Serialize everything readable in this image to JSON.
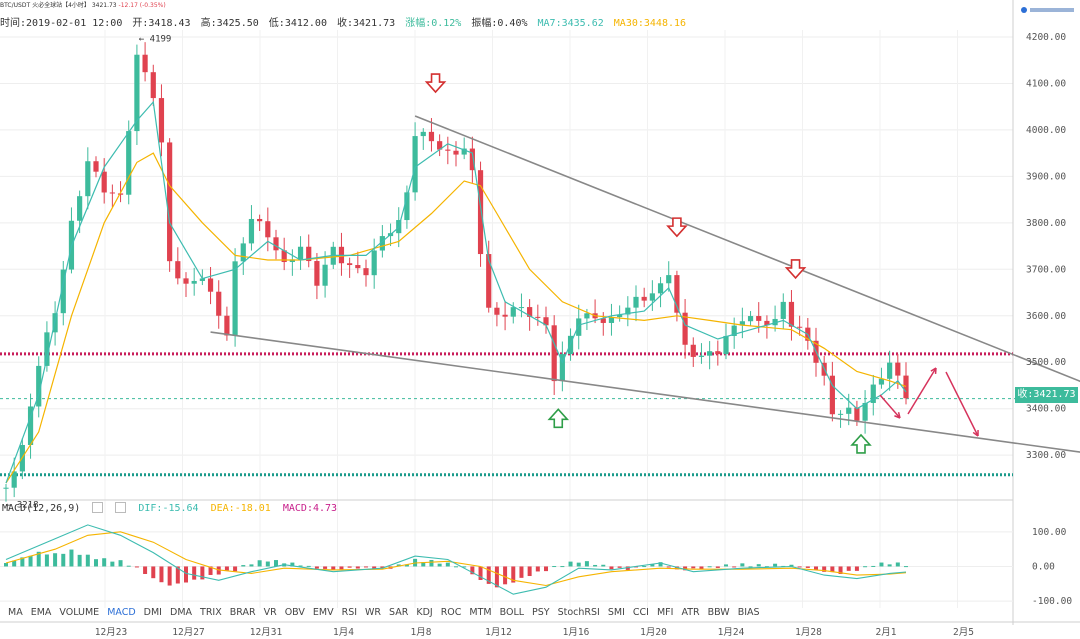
{
  "header": {
    "pair": "BTC/USDT",
    "exchange": "火必全球站【4小时】",
    "last": "3421.73",
    "change": "-12.17 (-0.35%)"
  },
  "topinfo": {
    "time": "时间:2019-02-01 12:00",
    "open": "开:3418.43",
    "high": "高:3425.50",
    "low": "低:3412.00",
    "close": "收:3421.73",
    "change": "涨幅:0.12%",
    "amplitude": "振幅:0.40%",
    "ma7": "MA7:3435.62",
    "ma30": "MA30:3448.16"
  },
  "macd_info": {
    "name": "MACD(12,26,9)",
    "dif": "DIF:-15.64",
    "dea": "DEA:-18.01",
    "macd": "MACD:4.73"
  },
  "indicators": [
    "MA",
    "EMA",
    "VOLUME",
    "MACD",
    "DMI",
    "DMA",
    "TRIX",
    "BRAR",
    "VR",
    "OBV",
    "EMV",
    "RSI",
    "WR",
    "SAR",
    "KDJ",
    "ROC",
    "MTM",
    "BOLL",
    "PSY",
    "StochRSI",
    "SMI",
    "CCI",
    "MFI",
    "ATR",
    "BBW",
    "BIAS"
  ],
  "active_indicator": "MACD",
  "colors": {
    "up": "#3dbb9c",
    "down": "#e0424f",
    "ma7": "#3dbcb0",
    "ma30": "#f5b400",
    "trendline": "#888888",
    "support_line": "#c81e5a",
    "lower_support": "#1a9a8a",
    "arrow_red": "#d32f2f",
    "arrow_green": "#2e9e48",
    "projection": "#d6335c"
  },
  "chart_data": [
    {
      "type": "candlestick",
      "title": "BTC/USDT 4H",
      "x_ticks": [
        "12月23",
        "12月27",
        "12月31",
        "1月4",
        "1月8",
        "1月12",
        "1月16",
        "1月20",
        "1月24",
        "1月28",
        "2月1",
        "2月5"
      ],
      "y_ticks": [
        3300,
        3400,
        3500,
        3600,
        3700,
        3800,
        3900,
        4000,
        4100,
        4200
      ],
      "ylim": [
        3210,
        4215
      ],
      "current_price": 3421.73,
      "high_mark": 4199,
      "low_mark": 3218,
      "horizontal_levels": [
        {
          "name": "resistance-support",
          "value": 3518
        },
        {
          "name": "lower-support",
          "value": 3258
        }
      ],
      "trendlines": [
        {
          "name": "upper-trendline",
          "from": {
            "x": 50,
            "y": 4030
          },
          "to": {
            "x": 134,
            "y": 3440
          }
        },
        {
          "name": "lower-trendline",
          "from": {
            "x": 25,
            "y": 3565
          },
          "to": {
            "x": 134,
            "y": 3300
          }
        }
      ],
      "price_path": [
        [
          0,
          3230
        ],
        [
          2,
          3300
        ],
        [
          4,
          3480
        ],
        [
          6,
          3600
        ],
        [
          8,
          3800
        ],
        [
          10,
          3950
        ],
        [
          12,
          3890
        ],
        [
          14,
          3860
        ],
        [
          16,
          4150
        ],
        [
          18,
          4060
        ],
        [
          19,
          3950
        ],
        [
          20,
          3700
        ],
        [
          22,
          3660
        ],
        [
          24,
          3700
        ],
        [
          26,
          3620
        ],
        [
          27,
          3580
        ],
        [
          28,
          3720
        ],
        [
          30,
          3810
        ],
        [
          32,
          3760
        ],
        [
          34,
          3690
        ],
        [
          36,
          3740
        ],
        [
          38,
          3680
        ],
        [
          40,
          3760
        ],
        [
          42,
          3720
        ],
        [
          44,
          3700
        ],
        [
          46,
          3760
        ],
        [
          48,
          3780
        ],
        [
          49,
          3850
        ],
        [
          50,
          3980
        ],
        [
          52,
          3980
        ],
        [
          54,
          3960
        ],
        [
          56,
          3980
        ],
        [
          57,
          3920
        ],
        [
          58,
          3750
        ],
        [
          59,
          3620
        ],
        [
          60,
          3590
        ],
        [
          62,
          3600
        ],
        [
          64,
          3590
        ],
        [
          66,
          3570
        ],
        [
          67,
          3470
        ],
        [
          68,
          3520
        ],
        [
          70,
          3620
        ],
        [
          72,
          3610
        ],
        [
          74,
          3590
        ],
        [
          76,
          3610
        ],
        [
          78,
          3620
        ],
        [
          80,
          3650
        ],
        [
          81,
          3690
        ],
        [
          82,
          3610
        ],
        [
          83,
          3540
        ],
        [
          85,
          3530
        ],
        [
          87,
          3540
        ],
        [
          88,
          3560
        ],
        [
          90,
          3590
        ],
        [
          92,
          3570
        ],
        [
          94,
          3570
        ],
        [
          95,
          3620
        ],
        [
          96,
          3580
        ],
        [
          98,
          3560
        ],
        [
          100,
          3480
        ],
        [
          101,
          3410
        ],
        [
          103,
          3400
        ],
        [
          104,
          3380
        ],
        [
          106,
          3430
        ],
        [
          108,
          3480
        ],
        [
          109,
          3450
        ],
        [
          110,
          3422
        ]
      ],
      "ma7_path": [
        [
          0,
          3240
        ],
        [
          4,
          3430
        ],
        [
          8,
          3750
        ],
        [
          12,
          3920
        ],
        [
          16,
          4020
        ],
        [
          18,
          4060
        ],
        [
          20,
          3800
        ],
        [
          24,
          3680
        ],
        [
          28,
          3700
        ],
        [
          32,
          3760
        ],
        [
          36,
          3720
        ],
        [
          40,
          3730
        ],
        [
          44,
          3730
        ],
        [
          48,
          3790
        ],
        [
          50,
          3920
        ],
        [
          54,
          3970
        ],
        [
          57,
          3950
        ],
        [
          59,
          3720
        ],
        [
          61,
          3630
        ],
        [
          66,
          3580
        ],
        [
          68,
          3500
        ],
        [
          70,
          3580
        ],
        [
          74,
          3600
        ],
        [
          78,
          3610
        ],
        [
          81,
          3660
        ],
        [
          83,
          3580
        ],
        [
          87,
          3550
        ],
        [
          91,
          3570
        ],
        [
          95,
          3590
        ],
        [
          98,
          3560
        ],
        [
          101,
          3450
        ],
        [
          104,
          3400
        ],
        [
          107,
          3430
        ],
        [
          109,
          3460
        ],
        [
          110,
          3436
        ]
      ],
      "ma30_path": [
        [
          0,
          3240
        ],
        [
          4,
          3350
        ],
        [
          8,
          3600
        ],
        [
          12,
          3800
        ],
        [
          16,
          3930
        ],
        [
          18,
          3950
        ],
        [
          20,
          3880
        ],
        [
          24,
          3800
        ],
        [
          28,
          3730
        ],
        [
          32,
          3720
        ],
        [
          36,
          3720
        ],
        [
          42,
          3730
        ],
        [
          48,
          3760
        ],
        [
          52,
          3820
        ],
        [
          56,
          3890
        ],
        [
          58,
          3880
        ],
        [
          60,
          3820
        ],
        [
          64,
          3700
        ],
        [
          68,
          3630
        ],
        [
          72,
          3600
        ],
        [
          78,
          3590
        ],
        [
          82,
          3600
        ],
        [
          86,
          3590
        ],
        [
          90,
          3580
        ],
        [
          96,
          3570
        ],
        [
          100,
          3530
        ],
        [
          104,
          3480
        ],
        [
          108,
          3460
        ],
        [
          110,
          3448
        ]
      ],
      "total_bars": 110
    },
    {
      "type": "bar",
      "title": "MACD(12,26,9)",
      "y_ticks": [
        100.0,
        0.0,
        -100.0
      ],
      "ylim": [
        -120,
        140
      ],
      "histogram": [
        [
          0,
          10
        ],
        [
          2,
          25
        ],
        [
          4,
          40
        ],
        [
          6,
          35
        ],
        [
          8,
          45
        ],
        [
          10,
          30
        ],
        [
          12,
          20
        ],
        [
          14,
          15
        ],
        [
          16,
          -5
        ],
        [
          18,
          -35
        ],
        [
          20,
          -55
        ],
        [
          22,
          -45
        ],
        [
          24,
          -35
        ],
        [
          26,
          -20
        ],
        [
          28,
          -10
        ],
        [
          30,
          10
        ],
        [
          32,
          18
        ],
        [
          34,
          12
        ],
        [
          36,
          5
        ],
        [
          38,
          -5
        ],
        [
          40,
          -10
        ],
        [
          42,
          -5
        ],
        [
          44,
          -3
        ],
        [
          46,
          -8
        ],
        [
          48,
          2
        ],
        [
          50,
          18
        ],
        [
          52,
          15
        ],
        [
          54,
          8
        ],
        [
          56,
          -2
        ],
        [
          58,
          -40
        ],
        [
          60,
          -60
        ],
        [
          62,
          -45
        ],
        [
          64,
          -25
        ],
        [
          66,
          -10
        ],
        [
          68,
          5
        ],
        [
          70,
          15
        ],
        [
          72,
          8
        ],
        [
          74,
          -5
        ],
        [
          76,
          -8
        ],
        [
          78,
          2
        ],
        [
          80,
          12
        ],
        [
          82,
          -10
        ],
        [
          84,
          -8
        ],
        [
          86,
          -3
        ],
        [
          88,
          2
        ],
        [
          90,
          5
        ],
        [
          92,
          3
        ],
        [
          94,
          5
        ],
        [
          96,
          3
        ],
        [
          98,
          -5
        ],
        [
          100,
          -15
        ],
        [
          102,
          -20
        ],
        [
          104,
          -10
        ],
        [
          106,
          5
        ],
        [
          108,
          10
        ],
        [
          110,
          5
        ]
      ],
      "dif_path": [
        [
          0,
          20
        ],
        [
          6,
          80
        ],
        [
          10,
          120
        ],
        [
          14,
          90
        ],
        [
          18,
          40
        ],
        [
          22,
          -20
        ],
        [
          26,
          -40
        ],
        [
          30,
          -15
        ],
        [
          34,
          5
        ],
        [
          40,
          -15
        ],
        [
          46,
          -5
        ],
        [
          50,
          30
        ],
        [
          54,
          20
        ],
        [
          58,
          -30
        ],
        [
          62,
          -80
        ],
        [
          66,
          -60
        ],
        [
          70,
          -5
        ],
        [
          74,
          -10
        ],
        [
          80,
          10
        ],
        [
          84,
          -15
        ],
        [
          90,
          -5
        ],
        [
          96,
          0
        ],
        [
          100,
          -25
        ],
        [
          104,
          -35
        ],
        [
          108,
          -20
        ],
        [
          110,
          -16
        ]
      ],
      "dea_path": [
        [
          0,
          10
        ],
        [
          6,
          50
        ],
        [
          10,
          90
        ],
        [
          14,
          100
        ],
        [
          18,
          70
        ],
        [
          22,
          20
        ],
        [
          26,
          -10
        ],
        [
          30,
          -20
        ],
        [
          34,
          -5
        ],
        [
          40,
          -10
        ],
        [
          46,
          -8
        ],
        [
          50,
          10
        ],
        [
          54,
          15
        ],
        [
          58,
          0
        ],
        [
          62,
          -40
        ],
        [
          66,
          -55
        ],
        [
          70,
          -30
        ],
        [
          74,
          -15
        ],
        [
          80,
          -5
        ],
        [
          84,
          -8
        ],
        [
          90,
          -8
        ],
        [
          96,
          -5
        ],
        [
          100,
          -12
        ],
        [
          104,
          -25
        ],
        [
          108,
          -22
        ],
        [
          110,
          -18
        ]
      ]
    }
  ]
}
